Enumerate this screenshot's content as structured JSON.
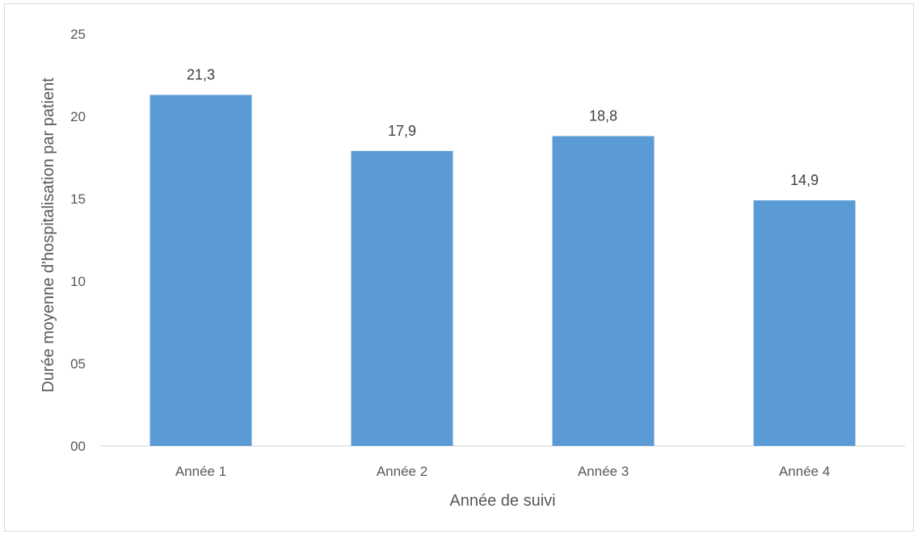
{
  "chart_data": {
    "type": "bar",
    "title": "",
    "xlabel": "Année de suivi",
    "ylabel": "Durée moyenne d'hospitalisation par patient",
    "categories": [
      "Année 1",
      "Année 2",
      "Année 3",
      "Année 4"
    ],
    "values": [
      21.3,
      17.9,
      18.8,
      14.9
    ],
    "value_labels": [
      "21,3",
      "17,9",
      "18,8",
      "14,9"
    ],
    "ylim": [
      0,
      25
    ],
    "yticks": [
      0,
      5,
      10,
      15,
      20,
      25
    ],
    "ytick_labels": [
      "00",
      "05",
      "10",
      "15",
      "20",
      "25"
    ],
    "grid": false,
    "legend": "none",
    "bar_color": "#5b9bd5"
  }
}
